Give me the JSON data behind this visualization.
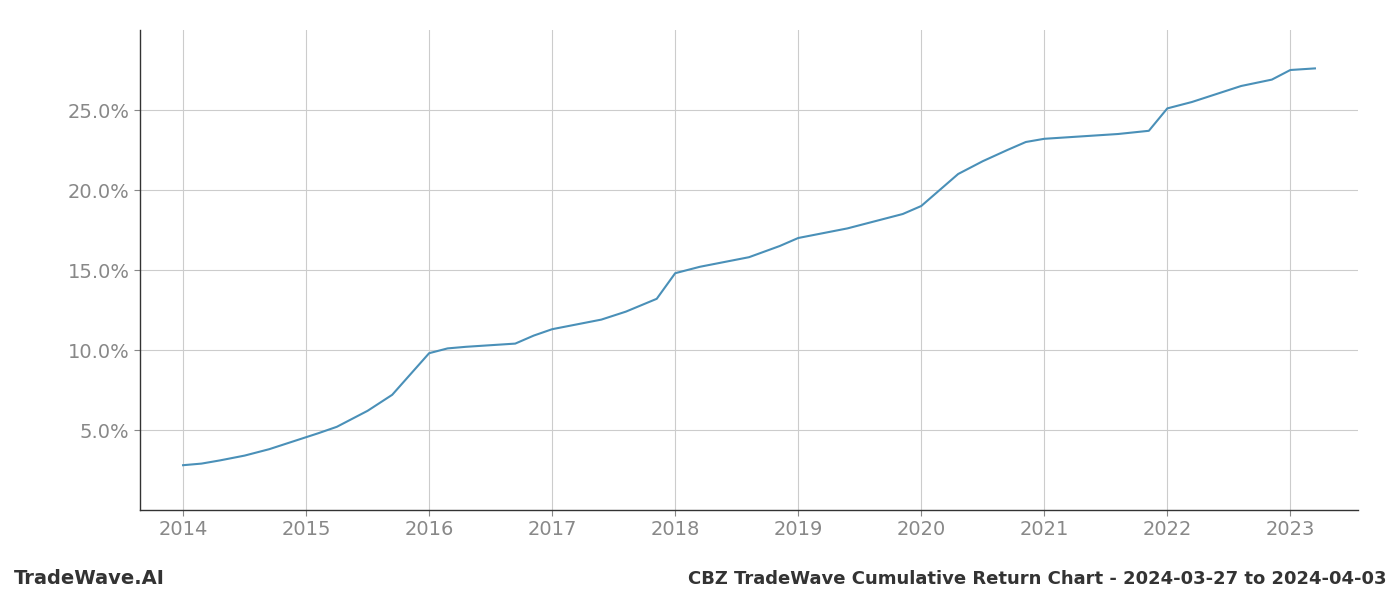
{
  "x_years": [
    2014.0,
    2014.15,
    2014.3,
    2014.5,
    2014.7,
    2014.9,
    2015.1,
    2015.25,
    2015.5,
    2015.7,
    2015.85,
    2016.0,
    2016.15,
    2016.3,
    2016.5,
    2016.7,
    2016.85,
    2017.0,
    2017.2,
    2017.4,
    2017.6,
    2017.85,
    2018.0,
    2018.2,
    2018.4,
    2018.6,
    2018.85,
    2019.0,
    2019.2,
    2019.4,
    2019.6,
    2019.85,
    2020.0,
    2020.15,
    2020.3,
    2020.5,
    2020.7,
    2020.85,
    2021.0,
    2021.2,
    2021.4,
    2021.6,
    2021.85,
    2022.0,
    2022.2,
    2022.4,
    2022.6,
    2022.85,
    2023.0,
    2023.2
  ],
  "y_values": [
    2.8,
    2.9,
    3.1,
    3.4,
    3.8,
    4.3,
    4.8,
    5.2,
    6.2,
    7.2,
    8.5,
    9.8,
    10.1,
    10.2,
    10.3,
    10.4,
    10.9,
    11.3,
    11.6,
    11.9,
    12.4,
    13.2,
    14.8,
    15.2,
    15.5,
    15.8,
    16.5,
    17.0,
    17.3,
    17.6,
    18.0,
    18.5,
    19.0,
    20.0,
    21.0,
    21.8,
    22.5,
    23.0,
    23.2,
    23.3,
    23.4,
    23.5,
    23.7,
    25.1,
    25.5,
    26.0,
    26.5,
    26.9,
    27.5,
    27.6
  ],
  "line_color": "#4a90b8",
  "background_color": "#ffffff",
  "grid_color": "#cccccc",
  "title_bottom": "CBZ TradeWave Cumulative Return Chart - 2024-03-27 to 2024-04-03",
  "watermark": "TradeWave.AI",
  "xlim": [
    2013.65,
    2023.55
  ],
  "ylim": [
    0,
    30
  ],
  "yticks": [
    5.0,
    10.0,
    15.0,
    20.0,
    25.0
  ],
  "xticks": [
    2014,
    2015,
    2016,
    2017,
    2018,
    2019,
    2020,
    2021,
    2022,
    2023
  ],
  "line_width": 1.5,
  "title_fontsize": 13,
  "watermark_fontsize": 14,
  "tick_fontsize": 14
}
